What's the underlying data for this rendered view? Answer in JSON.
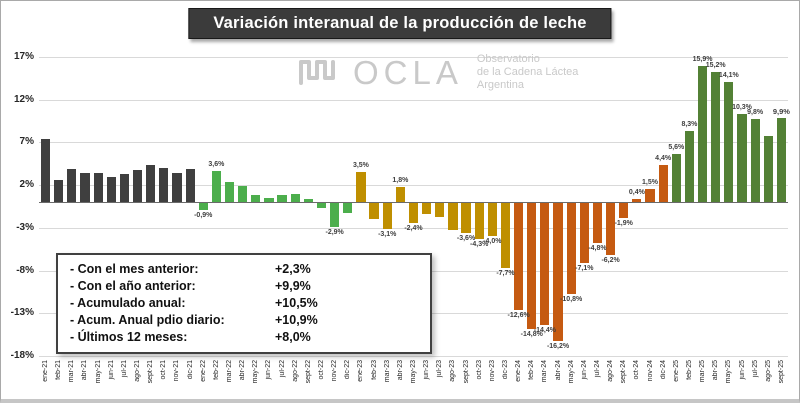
{
  "watermark": {
    "logo_icon": "ocla-wave-icon",
    "name": "OCLA",
    "line1": "Observatorio",
    "line2": "de la Cadena Láctea",
    "line3": "Argentina"
  },
  "summary_box": {
    "rows": [
      {
        "label": "- Con el mes anterior:",
        "value": "+2,3%"
      },
      {
        "label": "- Con el año anterior:",
        "value": "+9,9%"
      },
      {
        "label": "- Acumulado anual:",
        "value": "+10,5%"
      },
      {
        "label": "- Acum. Anual pdio diario:",
        "value": "+10,9%"
      },
      {
        "label": "- Últimos 12 meses:",
        "value": "+8,0%"
      }
    ]
  },
  "chart_data": {
    "type": "bar",
    "title": "Variación interanual de la producción de leche",
    "xlabel": "",
    "ylabel": "",
    "unit": "percent year-over-year",
    "ylim": [
      -18,
      17
    ],
    "yticks": [
      17,
      12,
      7,
      2,
      -3,
      -8,
      -13,
      -18
    ],
    "ytick_labels": [
      "17%",
      "12%",
      "7%",
      "2%",
      "-3%",
      "-8%",
      "-13%",
      "-18%"
    ],
    "grid": true,
    "legend": false,
    "categories": [
      "ene-21",
      "feb-21",
      "mar-21",
      "abr-21",
      "may-21",
      "jun-21",
      "jul-21",
      "ago-21",
      "sept-21",
      "oct-21",
      "nov-21",
      "dic-21",
      "ene-22",
      "feb-22",
      "mar-22",
      "abr-22",
      "may-22",
      "jun-22",
      "jul-22",
      "ago-22",
      "sept-22",
      "oct-22",
      "nov-22",
      "dic-22",
      "ene-23",
      "feb-23",
      "mar-23",
      "abr-23",
      "may-23",
      "jun-23",
      "jul-23",
      "ago-23",
      "sept-23",
      "oct-23",
      "nov-23",
      "dic-23",
      "ene-24",
      "feb-24",
      "mar-24",
      "abr-24",
      "may-24",
      "jun-24",
      "jul-24",
      "ago-24",
      "sept-24",
      "oct-24",
      "nov-24",
      "dic-24",
      "ene-25",
      "feb-25",
      "mar-25",
      "abr-25",
      "may-25",
      "jun-25",
      "jul-25",
      "ago-25",
      "sept-25"
    ],
    "values": [
      7.4,
      2.6,
      3.9,
      3.4,
      3.4,
      3.0,
      3.3,
      3.8,
      4.4,
      4.0,
      3.4,
      3.9,
      -0.9,
      3.6,
      2.4,
      1.9,
      0.9,
      0.5,
      0.8,
      1.0,
      0.4,
      -0.7,
      -2.9,
      -1.3,
      3.5,
      -2.0,
      -3.1,
      1.8,
      -2.4,
      -1.4,
      -1.7,
      -3.3,
      -3.6,
      -4.3,
      -4.0,
      -7.7,
      -12.6,
      -14.8,
      -14.4,
      -16.2,
      -10.8,
      -7.1,
      -4.8,
      -6.2,
      -1.9,
      0.4,
      1.5,
      4.4,
      5.6,
      8.3,
      15.9,
      15.2,
      14.1,
      10.3,
      9.8,
      7.8,
      9.9
    ],
    "labels": [
      null,
      null,
      null,
      null,
      null,
      null,
      null,
      null,
      null,
      null,
      null,
      null,
      "-0,9%",
      "3,6%",
      null,
      null,
      null,
      null,
      null,
      null,
      null,
      null,
      "-2,9%",
      null,
      "3,5%",
      null,
      "-3,1%",
      "1,8%",
      "-2,4%",
      null,
      null,
      null,
      "-3,6%",
      "-4,3%",
      "-4,0%",
      "-7,7%",
      "-12,6%",
      "-14,8%",
      "-14,4%",
      "-16,2%",
      "-10,8%",
      "-7,1%",
      "-4,8%",
      "-6,2%",
      "-1,9%",
      "0,4%",
      "1,5%",
      "4,4%",
      "5,6%",
      "8,3%",
      "15,9%",
      "15,2%",
      "14,1%",
      "10,3%",
      "9,8%",
      null,
      "9,9%"
    ],
    "emphasis_category": "sept-25",
    "year_colors": {
      "2021": "#3f3f3f",
      "2022": "#4cae4c",
      "2023": "#bf8f00",
      "2024": "#c55a11",
      "2025": "#538135"
    }
  }
}
